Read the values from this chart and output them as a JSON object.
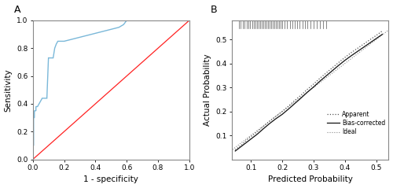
{
  "panel_A": {
    "label": "A",
    "xlabel": "1 - specificity",
    "ylabel": "Sensitivity",
    "xlim": [
      0.0,
      1.0
    ],
    "ylim": [
      0.0,
      1.0
    ],
    "xticks": [
      0.0,
      0.2,
      0.4,
      0.6,
      0.8,
      1.0
    ],
    "yticks": [
      0.0,
      0.2,
      0.4,
      0.6,
      0.8,
      1.0
    ],
    "roc_color": "#7ab8d9",
    "diagonal_color": "#ff2222",
    "roc_fpr": [
      0.0,
      0.0,
      0.0,
      0.005,
      0.005,
      0.01,
      0.01,
      0.02,
      0.02,
      0.03,
      0.04,
      0.05,
      0.06,
      0.07,
      0.08,
      0.09,
      0.1,
      0.13,
      0.14,
      0.15,
      0.16,
      0.17,
      0.18,
      0.19,
      0.2,
      0.55,
      0.58,
      0.6,
      0.8,
      0.82,
      1.0
    ],
    "roc_tpr": [
      0.0,
      0.06,
      0.1,
      0.1,
      0.3,
      0.3,
      0.35,
      0.35,
      0.38,
      0.38,
      0.4,
      0.42,
      0.44,
      0.44,
      0.44,
      0.44,
      0.73,
      0.73,
      0.8,
      0.83,
      0.85,
      0.85,
      0.85,
      0.85,
      0.85,
      0.95,
      0.97,
      1.0,
      1.0,
      1.0,
      1.0
    ]
  },
  "panel_B": {
    "label": "B",
    "xlabel": "Predicted Probability",
    "ylabel": "Actual Probability",
    "xlim": [
      0.04,
      0.54
    ],
    "ylim": [
      0.0,
      0.58
    ],
    "xticks": [
      0.1,
      0.2,
      0.3,
      0.4,
      0.5
    ],
    "yticks": [
      0.1,
      0.2,
      0.3,
      0.4,
      0.5
    ],
    "apparent_color": "#555555",
    "bias_corrected_color": "#111111",
    "ideal_color": "#888888",
    "apparent_x": [
      0.05,
      0.07,
      0.09,
      0.1,
      0.12,
      0.14,
      0.16,
      0.18,
      0.2,
      0.22,
      0.24,
      0.26,
      0.28,
      0.3,
      0.32,
      0.34,
      0.36,
      0.38,
      0.4,
      0.42,
      0.44,
      0.46,
      0.48,
      0.5,
      0.52
    ],
    "apparent_y": [
      0.04,
      0.06,
      0.085,
      0.095,
      0.115,
      0.138,
      0.16,
      0.18,
      0.2,
      0.222,
      0.246,
      0.268,
      0.292,
      0.314,
      0.338,
      0.36,
      0.382,
      0.404,
      0.425,
      0.445,
      0.463,
      0.481,
      0.499,
      0.517,
      0.536
    ],
    "bias_x": [
      0.05,
      0.07,
      0.09,
      0.1,
      0.12,
      0.14,
      0.16,
      0.18,
      0.2,
      0.22,
      0.24,
      0.26,
      0.28,
      0.3,
      0.32,
      0.34,
      0.36,
      0.38,
      0.4,
      0.42,
      0.44,
      0.46,
      0.48,
      0.5,
      0.52
    ],
    "bias_y": [
      0.035,
      0.055,
      0.075,
      0.085,
      0.105,
      0.128,
      0.15,
      0.17,
      0.188,
      0.21,
      0.233,
      0.256,
      0.28,
      0.302,
      0.326,
      0.348,
      0.37,
      0.392,
      0.413,
      0.432,
      0.45,
      0.468,
      0.486,
      0.504,
      0.522
    ],
    "rug_x": [
      0.062,
      0.068,
      0.074,
      0.08,
      0.086,
      0.092,
      0.098,
      0.104,
      0.109,
      0.114,
      0.119,
      0.124,
      0.129,
      0.134,
      0.139,
      0.144,
      0.149,
      0.154,
      0.159,
      0.164,
      0.169,
      0.174,
      0.179,
      0.184,
      0.189,
      0.194,
      0.2,
      0.208,
      0.216,
      0.224,
      0.232,
      0.24,
      0.248,
      0.256,
      0.264,
      0.272,
      0.28,
      0.29,
      0.3,
      0.31,
      0.32,
      0.33,
      0.34
    ],
    "rug_color": "#555555"
  },
  "background_color": "#ffffff",
  "spine_color": "#888888",
  "tick_fontsize": 6.5,
  "label_fontsize": 7.5,
  "panel_label_fontsize": 9
}
